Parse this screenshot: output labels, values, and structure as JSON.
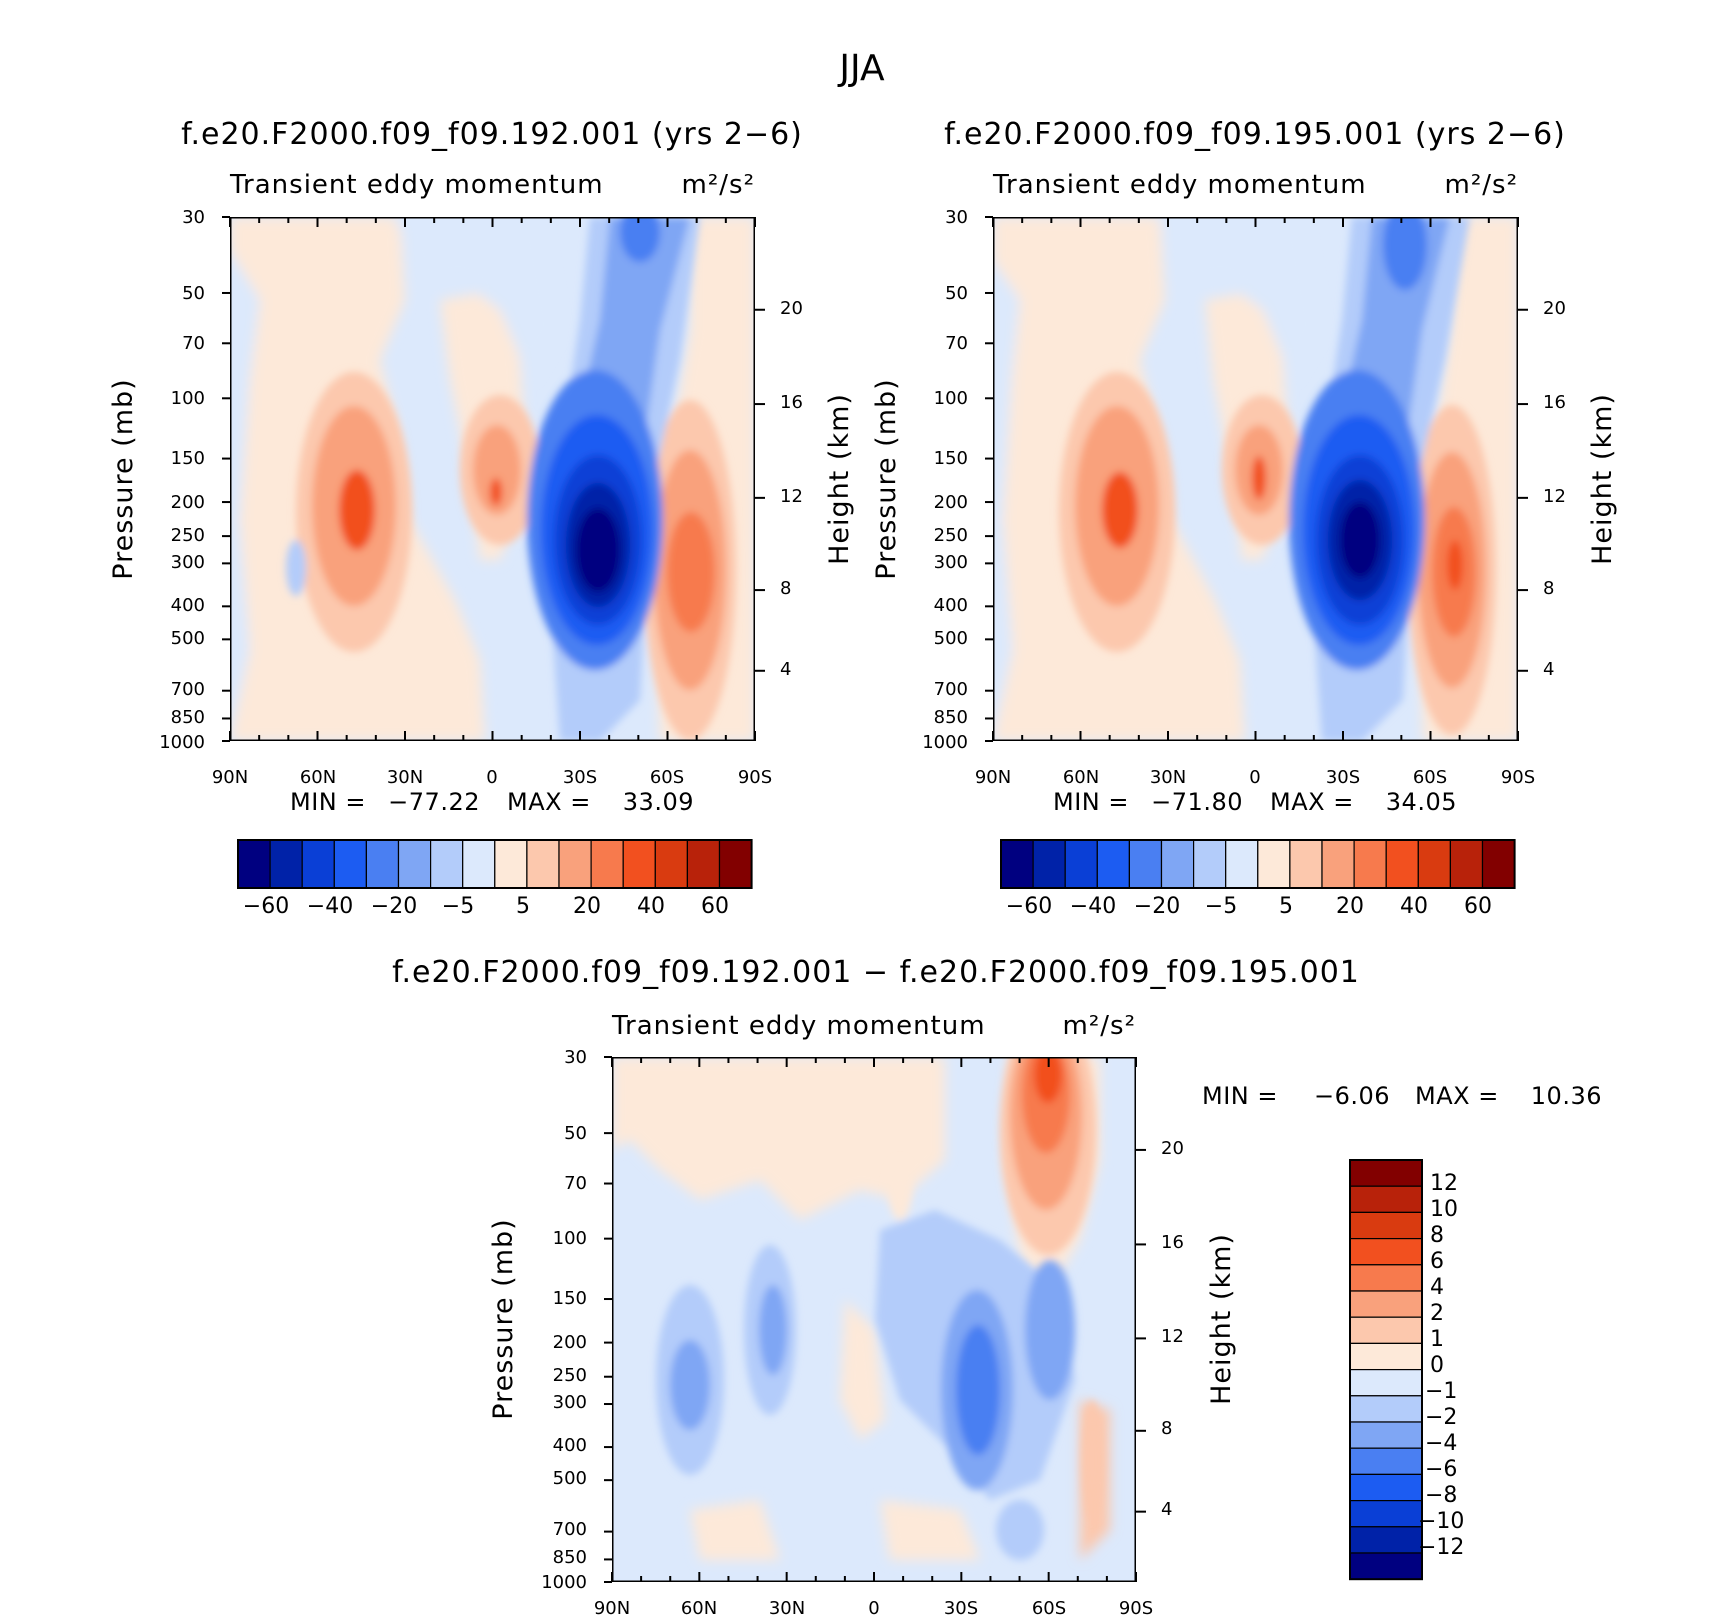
{
  "figure": {
    "title": "JJA"
  },
  "colors": {
    "scale": [
      "#000080",
      "#0022a8",
      "#0a3fd6",
      "#1c5cf2",
      "#4a7ff2",
      "#7fa6f4",
      "#b3ccfa",
      "#dce9fc",
      "#fde9d9",
      "#fcc8ad",
      "#f9a17c",
      "#f77a4d",
      "#f2501f",
      "#d93b10",
      "#b8220a",
      "#820000"
    ]
  },
  "chart_data": [
    {
      "type": "heatmap",
      "case": "f.e20.F2000.f09_f09.192.001 (yrs 2−6)",
      "subtitle_left": "Transient eddy momentum",
      "subtitle_right": "m²/s²",
      "xlabel": "",
      "ylabel": "Pressure (mb)",
      "ylabel_right": "Height (km)",
      "x_ticks": [
        "90N",
        "60N",
        "30N",
        "0",
        "30S",
        "60S",
        "90S"
      ],
      "y_ticks": [
        "30",
        "50",
        "70",
        "100",
        "150",
        "200",
        "250",
        "300",
        "400",
        "500",
        "700",
        "850",
        "1000"
      ],
      "y_ticks_right": [
        "20",
        "16",
        "12",
        "8",
        "4"
      ],
      "min_label": "MIN =",
      "min_value": "−77.22",
      "max_label": "MAX =",
      "max_value": "33.09",
      "levels": [
        "−60",
        "−40",
        "−20",
        "−5",
        "5",
        "20",
        "40",
        "60"
      ],
      "min": -77.22,
      "max": 33.09
    },
    {
      "type": "heatmap",
      "case": "f.e20.F2000.f09_f09.195.001 (yrs 2−6)",
      "subtitle_left": "Transient eddy momentum",
      "subtitle_right": "m²/s²",
      "xlabel": "",
      "ylabel": "Pressure (mb)",
      "ylabel_right": "Height (km)",
      "x_ticks": [
        "90N",
        "60N",
        "30N",
        "0",
        "30S",
        "60S",
        "90S"
      ],
      "y_ticks": [
        "30",
        "50",
        "70",
        "100",
        "150",
        "200",
        "250",
        "300",
        "400",
        "500",
        "700",
        "850",
        "1000"
      ],
      "y_ticks_right": [
        "20",
        "16",
        "12",
        "8",
        "4"
      ],
      "min_label": "MIN =",
      "min_value": "−71.80",
      "max_label": "MAX =",
      "max_value": "34.05",
      "levels": [
        "−60",
        "−40",
        "−20",
        "−5",
        "5",
        "20",
        "40",
        "60"
      ],
      "min": -71.8,
      "max": 34.05
    },
    {
      "type": "heatmap",
      "case": "f.e20.F2000.f09_f09.192.001 − f.e20.F2000.f09_f09.195.001",
      "subtitle_left": "Transient eddy momentum",
      "subtitle_right": "m²/s²",
      "xlabel": "",
      "ylabel": "Pressure (mb)",
      "ylabel_right": "Height (km)",
      "x_ticks": [
        "90N",
        "60N",
        "30N",
        "0",
        "30S",
        "60S",
        "90S"
      ],
      "y_ticks": [
        "30",
        "50",
        "70",
        "100",
        "150",
        "200",
        "250",
        "300",
        "400",
        "500",
        "700",
        "850",
        "1000"
      ],
      "y_ticks_right": [
        "20",
        "16",
        "12",
        "8",
        "4"
      ],
      "min_label": "MIN =",
      "min_value": "−6.06",
      "max_label": "MAX =",
      "max_value": "10.36",
      "levels": [
        "12",
        "10",
        "8",
        "6",
        "4",
        "2",
        "1",
        "0",
        "−1",
        "−2",
        "−4",
        "−6",
        "−8",
        "−10",
        "−12"
      ],
      "min": -6.06,
      "max": 10.36
    }
  ]
}
